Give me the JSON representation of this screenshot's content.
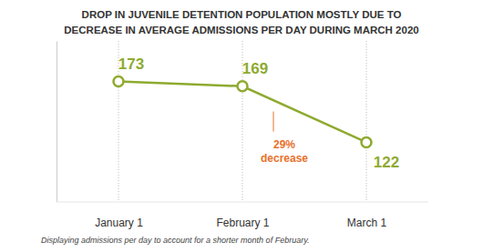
{
  "chart_data": {
    "type": "line",
    "title": "DROP IN JUVENILE DETENTION POPULATION MOSTLY DUE TO\nDECREASE IN AVERAGE ADMISSIONS PER DAY DURING MARCH 2020",
    "categories": [
      "January 1",
      "February 1",
      "March 1"
    ],
    "values": [
      173,
      169,
      122
    ],
    "color": "#8eaa2f",
    "marker": "circle",
    "ylim": [
      72,
      207
    ],
    "grid": true,
    "data_labels": true,
    "tick_labels": "x",
    "annotation": "29%\ndecrease",
    "caption": "Displaying admissions per day to account for a shorter month of February."
  }
}
